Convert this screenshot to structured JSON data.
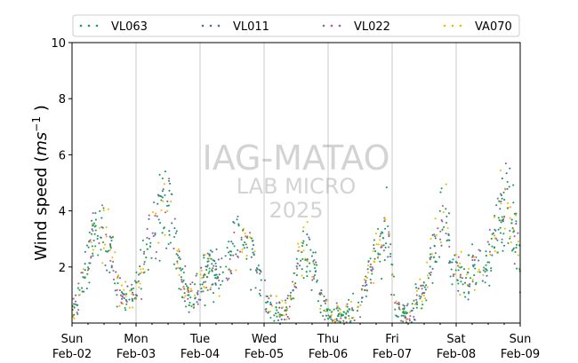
{
  "chart_data": {
    "type": "scatter",
    "ylabel": "Wind speed",
    "ylabel_unit_base": "ms",
    "ylabel_unit_exp": "−1",
    "ylim": [
      0,
      10
    ],
    "yticks": [
      2,
      4,
      6,
      8,
      10
    ],
    "xlim": [
      0,
      7
    ],
    "x_units": "days since Sun Feb-02 00:00",
    "xticks": [
      {
        "x": 0,
        "day": "Sun",
        "date": "Feb-02"
      },
      {
        "x": 1,
        "day": "Mon",
        "date": "Feb-03"
      },
      {
        "x": 2,
        "day": "Tue",
        "date": "Feb-04"
      },
      {
        "x": 3,
        "day": "Wed",
        "date": "Feb-05"
      },
      {
        "x": 4,
        "day": "Thu",
        "date": "Feb-06"
      },
      {
        "x": 5,
        "day": "Fri",
        "date": "Feb-07"
      },
      {
        "x": 6,
        "day": "Sat",
        "date": "Feb-08"
      },
      {
        "x": 7,
        "day": "Sun",
        "date": "Feb-09"
      }
    ],
    "grid": "vertical",
    "legend_position": "top",
    "watermark": [
      "IAG-MATAO",
      "LAB MICRO",
      "2025"
    ],
    "series": [
      {
        "name": "VL063",
        "color": "#1a9e5c"
      },
      {
        "name": "VL011",
        "color": "#4a6fa5"
      },
      {
        "name": "VL022",
        "color": "#b05a8f"
      },
      {
        "name": "VA070",
        "color": "#f5b800"
      }
    ],
    "trend": {
      "description": "approximate mean wind speed by time (days)",
      "x": [
        0.0,
        0.1,
        0.2,
        0.3,
        0.38,
        0.5,
        0.62,
        0.75,
        0.85,
        0.95,
        1.05,
        1.15,
        1.25,
        1.35,
        1.45,
        1.55,
        1.7,
        1.8,
        1.95,
        2.05,
        2.15,
        2.25,
        2.35,
        2.45,
        2.55,
        2.7,
        2.85,
        2.95,
        3.05,
        3.15,
        3.25,
        3.35,
        3.45,
        3.55,
        3.7,
        3.8,
        3.95,
        4.05,
        4.15,
        4.25,
        4.35,
        4.45,
        4.55,
        4.7,
        4.8,
        4.95,
        5.05,
        5.15,
        5.25,
        5.35,
        5.45,
        5.6,
        5.7,
        5.8,
        5.95,
        6.05,
        6.15,
        6.25,
        6.35,
        6.45,
        6.55,
        6.7,
        6.8,
        6.95,
        7.0
      ],
      "y": [
        0.3,
        0.9,
        1.6,
        2.8,
        3.4,
        3.0,
        2.4,
        1.0,
        0.8,
        1.0,
        1.3,
        2.5,
        3.2,
        3.8,
        4.3,
        4.0,
        1.6,
        1.2,
        1.0,
        1.5,
        2.0,
        1.7,
        1.6,
        2.4,
        3.0,
        3.2,
        2.2,
        1.2,
        0.7,
        0.6,
        0.4,
        0.4,
        1.0,
        2.5,
        2.6,
        1.8,
        0.4,
        0.3,
        0.3,
        0.3,
        0.4,
        0.5,
        1.0,
        2.2,
        2.9,
        3.2,
        0.6,
        0.3,
        0.3,
        0.7,
        1.0,
        2.2,
        3.0,
        4.2,
        2.0,
        1.7,
        1.6,
        1.9,
        2.0,
        2.1,
        2.5,
        3.8,
        4.3,
        2.6,
        2.3
      ]
    }
  }
}
